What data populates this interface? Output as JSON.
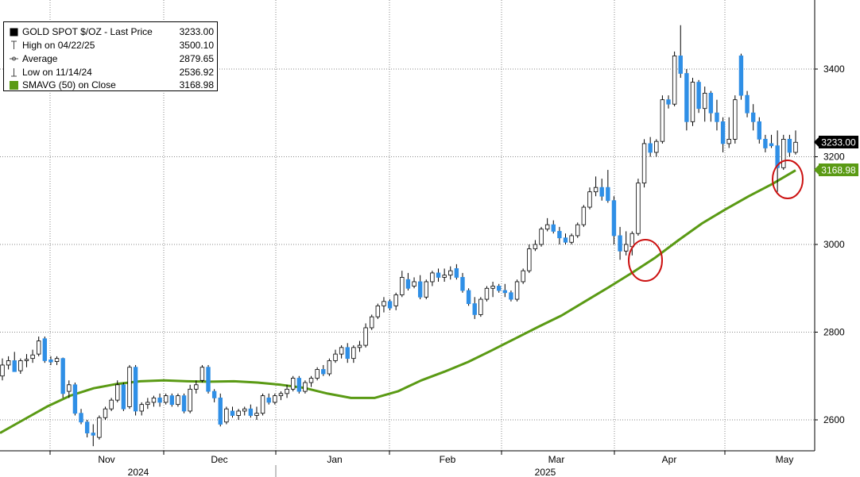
{
  "legend": {
    "title": "GOLD SPOT $/OZ - Last Price",
    "title_value": "3233.00",
    "high_label": "High on 04/22/25",
    "high_value": "3500.10",
    "avg_label": "Average",
    "avg_value": "2879.65",
    "low_label": "Low on 11/14/24",
    "low_value": "2536.92",
    "sma_label": "SMAVG (50)  on Close",
    "sma_value": "3168.98"
  },
  "badges": {
    "last_price": "3233.00",
    "sma": "3168.98"
  },
  "colors": {
    "up_candle": "#ffffff",
    "down_candle": "#2f8fe6",
    "sma_line": "#5a9a14",
    "circle": "#cc1111",
    "grid": "#8a8a8a"
  },
  "chart_data": {
    "type": "candlestick",
    "title": "GOLD SPOT $/OZ",
    "ylim": [
      2530,
      3530
    ],
    "y_ticks": [
      2600,
      2800,
      3000,
      3200,
      3400
    ],
    "x_month_labels": [
      "Nov",
      "Dec",
      "Jan",
      "Feb",
      "Mar",
      "Apr",
      "May"
    ],
    "x_year_labels": [
      "2024",
      "2025"
    ],
    "last_price": 3233.0,
    "sma_last": 3168.98,
    "candles": [
      {
        "o": 2700,
        "h": 2740,
        "l": 2690,
        "c": 2725
      },
      {
        "o": 2725,
        "h": 2745,
        "l": 2715,
        "c": 2735
      },
      {
        "o": 2735,
        "h": 2755,
        "l": 2720,
        "c": 2710
      },
      {
        "o": 2712,
        "h": 2740,
        "l": 2705,
        "c": 2735
      },
      {
        "o": 2735,
        "h": 2750,
        "l": 2720,
        "c": 2738
      },
      {
        "o": 2740,
        "h": 2760,
        "l": 2730,
        "c": 2748
      },
      {
        "o": 2750,
        "h": 2790,
        "l": 2745,
        "c": 2780
      },
      {
        "o": 2785,
        "h": 2790,
        "l": 2730,
        "c": 2735
      },
      {
        "o": 2737,
        "h": 2745,
        "l": 2725,
        "c": 2732
      },
      {
        "o": 2733,
        "h": 2745,
        "l": 2725,
        "c": 2740
      },
      {
        "o": 2740,
        "h": 2742,
        "l": 2650,
        "c": 2660
      },
      {
        "o": 2665,
        "h": 2690,
        "l": 2650,
        "c": 2680
      },
      {
        "o": 2680,
        "h": 2685,
        "l": 2610,
        "c": 2615
      },
      {
        "o": 2615,
        "h": 2625,
        "l": 2590,
        "c": 2595
      },
      {
        "o": 2595,
        "h": 2600,
        "l": 2560,
        "c": 2570
      },
      {
        "o": 2570,
        "h": 2590,
        "l": 2540,
        "c": 2565
      },
      {
        "o": 2560,
        "h": 2610,
        "l": 2555,
        "c": 2605
      },
      {
        "o": 2605,
        "h": 2630,
        "l": 2600,
        "c": 2625
      },
      {
        "o": 2625,
        "h": 2650,
        "l": 2620,
        "c": 2645
      },
      {
        "o": 2645,
        "h": 2690,
        "l": 2640,
        "c": 2680
      },
      {
        "o": 2680,
        "h": 2685,
        "l": 2620,
        "c": 2625
      },
      {
        "o": 2630,
        "h": 2725,
        "l": 2625,
        "c": 2720
      },
      {
        "o": 2720,
        "h": 2725,
        "l": 2610,
        "c": 2620
      },
      {
        "o": 2620,
        "h": 2640,
        "l": 2610,
        "c": 2635
      },
      {
        "o": 2635,
        "h": 2650,
        "l": 2625,
        "c": 2640
      },
      {
        "o": 2640,
        "h": 2655,
        "l": 2630,
        "c": 2650
      },
      {
        "o": 2650,
        "h": 2660,
        "l": 2630,
        "c": 2640
      },
      {
        "o": 2640,
        "h": 2660,
        "l": 2635,
        "c": 2655
      },
      {
        "o": 2655,
        "h": 2660,
        "l": 2630,
        "c": 2635
      },
      {
        "o": 2635,
        "h": 2660,
        "l": 2630,
        "c": 2655
      },
      {
        "o": 2655,
        "h": 2660,
        "l": 2615,
        "c": 2620
      },
      {
        "o": 2620,
        "h": 2680,
        "l": 2615,
        "c": 2670
      },
      {
        "o": 2670,
        "h": 2690,
        "l": 2660,
        "c": 2680
      },
      {
        "o": 2690,
        "h": 2725,
        "l": 2685,
        "c": 2720
      },
      {
        "o": 2720,
        "h": 2725,
        "l": 2660,
        "c": 2665
      },
      {
        "o": 2665,
        "h": 2670,
        "l": 2640,
        "c": 2650
      },
      {
        "o": 2650,
        "h": 2660,
        "l": 2585,
        "c": 2590
      },
      {
        "o": 2595,
        "h": 2630,
        "l": 2590,
        "c": 2625
      },
      {
        "o": 2620,
        "h": 2630,
        "l": 2605,
        "c": 2610
      },
      {
        "o": 2610,
        "h": 2625,
        "l": 2600,
        "c": 2620
      },
      {
        "o": 2620,
        "h": 2630,
        "l": 2610,
        "c": 2625
      },
      {
        "o": 2625,
        "h": 2635,
        "l": 2605,
        "c": 2610
      },
      {
        "o": 2610,
        "h": 2630,
        "l": 2600,
        "c": 2615
      },
      {
        "o": 2615,
        "h": 2660,
        "l": 2610,
        "c": 2655
      },
      {
        "o": 2650,
        "h": 2660,
        "l": 2635,
        "c": 2640
      },
      {
        "o": 2640,
        "h": 2660,
        "l": 2635,
        "c": 2655
      },
      {
        "o": 2655,
        "h": 2665,
        "l": 2645,
        "c": 2660
      },
      {
        "o": 2660,
        "h": 2680,
        "l": 2650,
        "c": 2670
      },
      {
        "o": 2670,
        "h": 2700,
        "l": 2665,
        "c": 2695
      },
      {
        "o": 2695,
        "h": 2700,
        "l": 2660,
        "c": 2665
      },
      {
        "o": 2665,
        "h": 2690,
        "l": 2660,
        "c": 2685
      },
      {
        "o": 2685,
        "h": 2700,
        "l": 2675,
        "c": 2695
      },
      {
        "o": 2695,
        "h": 2720,
        "l": 2690,
        "c": 2715
      },
      {
        "o": 2715,
        "h": 2725,
        "l": 2700,
        "c": 2705
      },
      {
        "o": 2705,
        "h": 2740,
        "l": 2700,
        "c": 2735
      },
      {
        "o": 2735,
        "h": 2760,
        "l": 2730,
        "c": 2750
      },
      {
        "o": 2750,
        "h": 2770,
        "l": 2740,
        "c": 2765
      },
      {
        "o": 2765,
        "h": 2775,
        "l": 2730,
        "c": 2740
      },
      {
        "o": 2740,
        "h": 2770,
        "l": 2730,
        "c": 2765
      },
      {
        "o": 2765,
        "h": 2780,
        "l": 2755,
        "c": 2770
      },
      {
        "o": 2770,
        "h": 2820,
        "l": 2765,
        "c": 2810
      },
      {
        "o": 2810,
        "h": 2840,
        "l": 2805,
        "c": 2835
      },
      {
        "o": 2835,
        "h": 2865,
        "l": 2830,
        "c": 2860
      },
      {
        "o": 2860,
        "h": 2880,
        "l": 2845,
        "c": 2870
      },
      {
        "o": 2870,
        "h": 2875,
        "l": 2850,
        "c": 2855
      },
      {
        "o": 2860,
        "h": 2890,
        "l": 2850,
        "c": 2885
      },
      {
        "o": 2885,
        "h": 2940,
        "l": 2880,
        "c": 2925
      },
      {
        "o": 2920,
        "h": 2935,
        "l": 2895,
        "c": 2900
      },
      {
        "o": 2905,
        "h": 2925,
        "l": 2900,
        "c": 2915
      },
      {
        "o": 2915,
        "h": 2930,
        "l": 2875,
        "c": 2880
      },
      {
        "o": 2880,
        "h": 2920,
        "l": 2875,
        "c": 2915
      },
      {
        "o": 2915,
        "h": 2940,
        "l": 2905,
        "c": 2935
      },
      {
        "o": 2935,
        "h": 2945,
        "l": 2915,
        "c": 2925
      },
      {
        "o": 2925,
        "h": 2945,
        "l": 2915,
        "c": 2930
      },
      {
        "o": 2930,
        "h": 2950,
        "l": 2920,
        "c": 2940
      },
      {
        "o": 2945,
        "h": 2955,
        "l": 2920,
        "c": 2925
      },
      {
        "o": 2925,
        "h": 2935,
        "l": 2890,
        "c": 2895
      },
      {
        "o": 2895,
        "h": 2900,
        "l": 2860,
        "c": 2865
      },
      {
        "o": 2865,
        "h": 2880,
        "l": 2830,
        "c": 2840
      },
      {
        "o": 2840,
        "h": 2880,
        "l": 2835,
        "c": 2875
      },
      {
        "o": 2875,
        "h": 2905,
        "l": 2870,
        "c": 2900
      },
      {
        "o": 2900,
        "h": 2915,
        "l": 2880,
        "c": 2905
      },
      {
        "o": 2905,
        "h": 2910,
        "l": 2890,
        "c": 2895
      },
      {
        "o": 2895,
        "h": 2910,
        "l": 2880,
        "c": 2890
      },
      {
        "o": 2890,
        "h": 2895,
        "l": 2870,
        "c": 2875
      },
      {
        "o": 2875,
        "h": 2920,
        "l": 2870,
        "c": 2915
      },
      {
        "o": 2915,
        "h": 2945,
        "l": 2910,
        "c": 2940
      },
      {
        "o": 2940,
        "h": 3000,
        "l": 2935,
        "c": 2990
      },
      {
        "o": 2990,
        "h": 3010,
        "l": 2985,
        "c": 3000
      },
      {
        "o": 3000,
        "h": 3040,
        "l": 2995,
        "c": 3035
      },
      {
        "o": 3035,
        "h": 3060,
        "l": 3030,
        "c": 3045
      },
      {
        "o": 3045,
        "h": 3055,
        "l": 3025,
        "c": 3030
      },
      {
        "o": 3030,
        "h": 3040,
        "l": 3000,
        "c": 3015
      },
      {
        "o": 3015,
        "h": 3025,
        "l": 3000,
        "c": 3005
      },
      {
        "o": 3005,
        "h": 3025,
        "l": 3000,
        "c": 3020
      },
      {
        "o": 3020,
        "h": 3050,
        "l": 3015,
        "c": 3045
      },
      {
        "o": 3045,
        "h": 3090,
        "l": 3040,
        "c": 3085
      },
      {
        "o": 3085,
        "h": 3130,
        "l": 3080,
        "c": 3120
      },
      {
        "o": 3120,
        "h": 3155,
        "l": 3110,
        "c": 3130
      },
      {
        "o": 3130,
        "h": 3150,
        "l": 3100,
        "c": 3110
      },
      {
        "o": 3130,
        "h": 3170,
        "l": 3095,
        "c": 3100
      },
      {
        "o": 3100,
        "h": 3110,
        "l": 3000,
        "c": 3020
      },
      {
        "o": 3020,
        "h": 3040,
        "l": 2965,
        "c": 2985
      },
      {
        "o": 2985,
        "h": 3030,
        "l": 2975,
        "c": 3000
      },
      {
        "o": 2995,
        "h": 3030,
        "l": 2975,
        "c": 3025
      },
      {
        "o": 3025,
        "h": 3150,
        "l": 3020,
        "c": 3140
      },
      {
        "o": 3140,
        "h": 3240,
        "l": 3130,
        "c": 3230
      },
      {
        "o": 3230,
        "h": 3245,
        "l": 3200,
        "c": 3210
      },
      {
        "o": 3210,
        "h": 3240,
        "l": 3200,
        "c": 3235
      },
      {
        "o": 3235,
        "h": 3340,
        "l": 3230,
        "c": 3330
      },
      {
        "o": 3330,
        "h": 3340,
        "l": 3310,
        "c": 3320
      },
      {
        "o": 3320,
        "h": 3440,
        "l": 3315,
        "c": 3430
      },
      {
        "o": 3430,
        "h": 3500,
        "l": 3380,
        "c": 3390
      },
      {
        "o": 3390,
        "h": 3400,
        "l": 3260,
        "c": 3280
      },
      {
        "o": 3280,
        "h": 3380,
        "l": 3270,
        "c": 3370
      },
      {
        "o": 3370,
        "h": 3375,
        "l": 3300,
        "c": 3310
      },
      {
        "o": 3310,
        "h": 3360,
        "l": 3280,
        "c": 3345
      },
      {
        "o": 3345,
        "h": 3350,
        "l": 3280,
        "c": 3300
      },
      {
        "o": 3300,
        "h": 3330,
        "l": 3260,
        "c": 3280
      },
      {
        "o": 3280,
        "h": 3290,
        "l": 3210,
        "c": 3230
      },
      {
        "o": 3230,
        "h": 3290,
        "l": 3220,
        "c": 3240
      },
      {
        "o": 3240,
        "h": 3340,
        "l": 3230,
        "c": 3330
      },
      {
        "o": 3430,
        "h": 3435,
        "l": 3330,
        "c": 3340
      },
      {
        "o": 3340,
        "h": 3350,
        "l": 3290,
        "c": 3300
      },
      {
        "o": 3300,
        "h": 3320,
        "l": 3260,
        "c": 3280
      },
      {
        "o": 3280,
        "h": 3290,
        "l": 3230,
        "c": 3240
      },
      {
        "o": 3240,
        "h": 3250,
        "l": 3210,
        "c": 3220
      },
      {
        "o": 3230,
        "h": 3250,
        "l": 3220,
        "c": 3225
      },
      {
        "o": 3225,
        "h": 3260,
        "l": 3120,
        "c": 3175
      },
      {
        "o": 3175,
        "h": 3250,
        "l": 3170,
        "c": 3240
      },
      {
        "o": 3240,
        "h": 3250,
        "l": 3200,
        "c": 3210
      },
      {
        "o": 3210,
        "h": 3260,
        "l": 3205,
        "c": 3233
      }
    ],
    "sma_series": [
      2570,
      2600,
      2630,
      2655,
      2672,
      2682,
      2688,
      2690,
      2688,
      2687,
      2688,
      2685,
      2680,
      2673,
      2660,
      2650,
      2650,
      2665,
      2690,
      2710,
      2732,
      2758,
      2785,
      2812,
      2838,
      2870,
      2902,
      2935,
      2970,
      3010,
      3048,
      3080,
      3110,
      3138,
      3169
    ]
  }
}
